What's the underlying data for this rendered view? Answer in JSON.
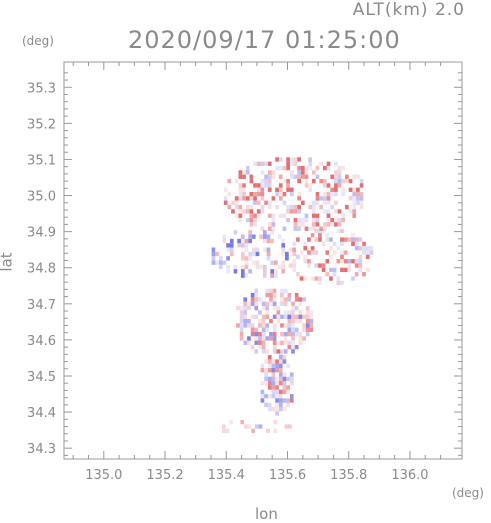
{
  "header": {
    "alt_label": "ALT(km) 2.0",
    "timestamp": "2020/09/17 01:25:00"
  },
  "chart_data": {
    "type": "heatmap",
    "title": "2020/09/17 01:25:00",
    "subtitle": "ALT(km) 2.0",
    "xlabel": "lon",
    "ylabel": "lat",
    "x_unit": "(deg)",
    "y_unit": "(deg)",
    "xlim": [
      134.87,
      136.17
    ],
    "ylim": [
      34.27,
      35.37
    ],
    "x_ticks": [
      "135.0",
      "135.2",
      "135.4",
      "135.6",
      "135.8",
      "136.0"
    ],
    "x_tick_values": [
      135.0,
      135.2,
      135.4,
      135.6,
      135.8,
      136.0
    ],
    "y_ticks": [
      "34.3",
      "34.4",
      "34.5",
      "34.6",
      "34.7",
      "34.8",
      "34.9",
      "35.0",
      "35.1",
      "35.2",
      "35.3"
    ],
    "y_tick_values": [
      34.3,
      34.4,
      34.5,
      34.6,
      34.7,
      34.8,
      34.9,
      35.0,
      35.1,
      35.2,
      35.3
    ],
    "grid": false,
    "colors": {
      "positive": "#e06060",
      "negative": "#6a6ae0",
      "frame": "#999999"
    },
    "regions": [
      {
        "lon": [
          135.38,
          135.86
        ],
        "lat": [
          34.89,
          35.1
        ],
        "density": 0.55,
        "bias": 0.35
      },
      {
        "lon": [
          135.34,
          135.62
        ],
        "lat": [
          34.76,
          34.9
        ],
        "density": 0.45,
        "bias": -0.2
      },
      {
        "lon": [
          135.58,
          135.88
        ],
        "lat": [
          34.74,
          34.9
        ],
        "density": 0.4,
        "bias": 0.3
      },
      {
        "lon": [
          135.42,
          135.68
        ],
        "lat": [
          34.55,
          34.74
        ],
        "density": 0.7,
        "bias": 0.0
      },
      {
        "lon": [
          135.5,
          135.62
        ],
        "lat": [
          34.39,
          34.56
        ],
        "density": 0.75,
        "bias": 0.05
      },
      {
        "lon": [
          135.35,
          135.62
        ],
        "lat": [
          34.33,
          34.37
        ],
        "density": 0.18,
        "bias": 0.0
      }
    ]
  }
}
